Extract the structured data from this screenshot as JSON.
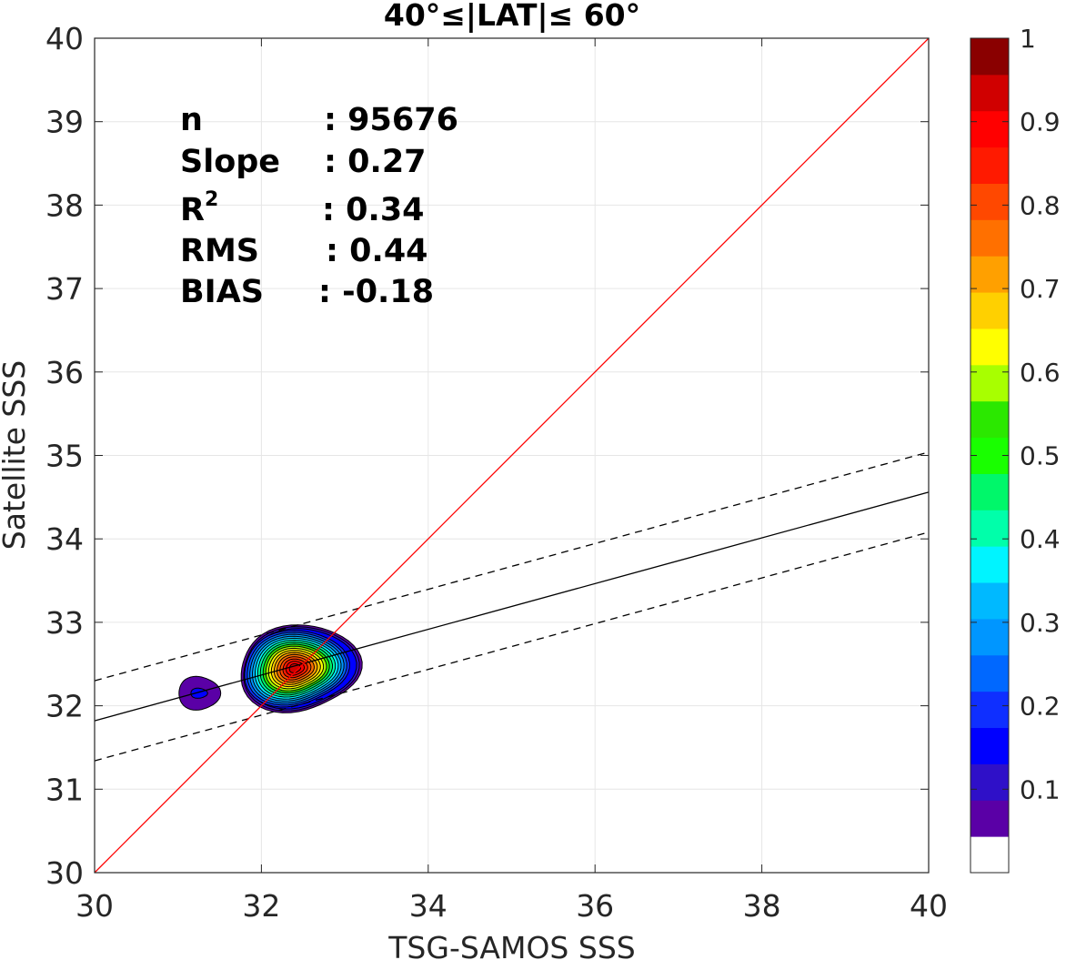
{
  "chart_data": {
    "type": "contour",
    "title": "40°≤|LAT|≤ 60°",
    "xlabel": "TSG-SAMOS SSS",
    "ylabel": "Satellite SSS",
    "xlim": [
      30,
      40
    ],
    "ylim": [
      30,
      40
    ],
    "xticks": [
      "30",
      "32",
      "34",
      "36",
      "38",
      "40"
    ],
    "yticks": [
      "30",
      "31",
      "32",
      "33",
      "34",
      "35",
      "36",
      "37",
      "38",
      "39",
      "40"
    ],
    "grid": true,
    "stats": [
      {
        "label": "n",
        "value": ": 95676"
      },
      {
        "label": "Slope",
        "value": ": 0.27"
      },
      {
        "label": "R",
        "sup": "2",
        "value": ": 0.34"
      },
      {
        "label": "RMS",
        "value": ": 0.44"
      },
      {
        "label": "BIAS",
        "value": ": -0.18"
      }
    ],
    "one_to_one_line": {
      "x": [
        30,
        40
      ],
      "y": [
        30,
        40
      ],
      "color": "#ff0000"
    },
    "fit_line": {
      "x": [
        30,
        40
      ],
      "y": [
        31.82,
        34.56
      ],
      "color": "#000000"
    },
    "fit_band_upper": {
      "x": [
        30,
        40
      ],
      "y": [
        32.3,
        35.04
      ],
      "style": "dashed"
    },
    "fit_band_lower": {
      "x": [
        30,
        40
      ],
      "y": [
        31.34,
        34.08
      ],
      "style": "dashed"
    },
    "density_peaks": [
      {
        "center": [
          32.4,
          32.45
        ],
        "max_level": 0.95
      },
      {
        "center": [
          31.25,
          32.15
        ],
        "max_level": 0.15
      }
    ],
    "colorbar": {
      "ticks": [
        "0.1",
        "0.2",
        "0.3",
        "0.4",
        "0.5",
        "0.6",
        "0.7",
        "0.8",
        "0.9",
        "1"
      ],
      "range": [
        0,
        1
      ],
      "colors": [
        "#ffffff",
        "#5a00a6",
        "#2f10c8",
        "#0000ff",
        "#0f2fff",
        "#0068ff",
        "#0096ff",
        "#00b9ff",
        "#00f4ff",
        "#00ffaa",
        "#00f76a",
        "#19ff00",
        "#2be800",
        "#a8ff00",
        "#ffff00",
        "#ffd000",
        "#ffa000",
        "#ff7000",
        "#ff4800",
        "#ff1a00",
        "#ff0000",
        "#d00000",
        "#8a0000"
      ]
    }
  }
}
